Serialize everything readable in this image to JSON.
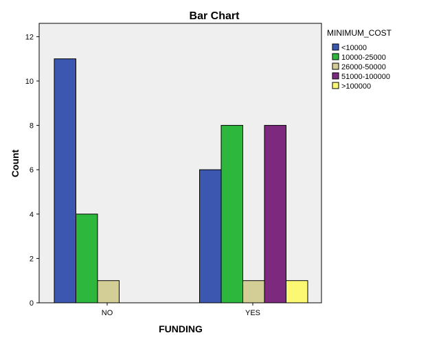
{
  "chart_data": {
    "type": "bar",
    "title": "Bar Chart",
    "xlabel": "FUNDING",
    "ylabel": "Count",
    "categories": [
      "NO",
      "YES"
    ],
    "ylim": [
      0,
      12.6
    ],
    "yticks": [
      0,
      2,
      4,
      6,
      8,
      10,
      12
    ],
    "grid": false,
    "legend_title": "MINIMUM_COST",
    "legend_position": "right",
    "series": [
      {
        "name": "<10000",
        "color": "#3b57b0",
        "values": [
          11,
          6
        ]
      },
      {
        "name": "10000-25000",
        "color": "#2db83d",
        "values": [
          4,
          8
        ]
      },
      {
        "name": "26000-50000",
        "color": "#d3ce96",
        "values": [
          1,
          1
        ]
      },
      {
        "name": "51000-100000",
        "color": "#7d2a7e",
        "values": [
          0,
          8
        ]
      },
      {
        "name": ">100000",
        "color": "#fcf873",
        "values": [
          0,
          1
        ]
      }
    ],
    "plot_background": "#efefef"
  }
}
